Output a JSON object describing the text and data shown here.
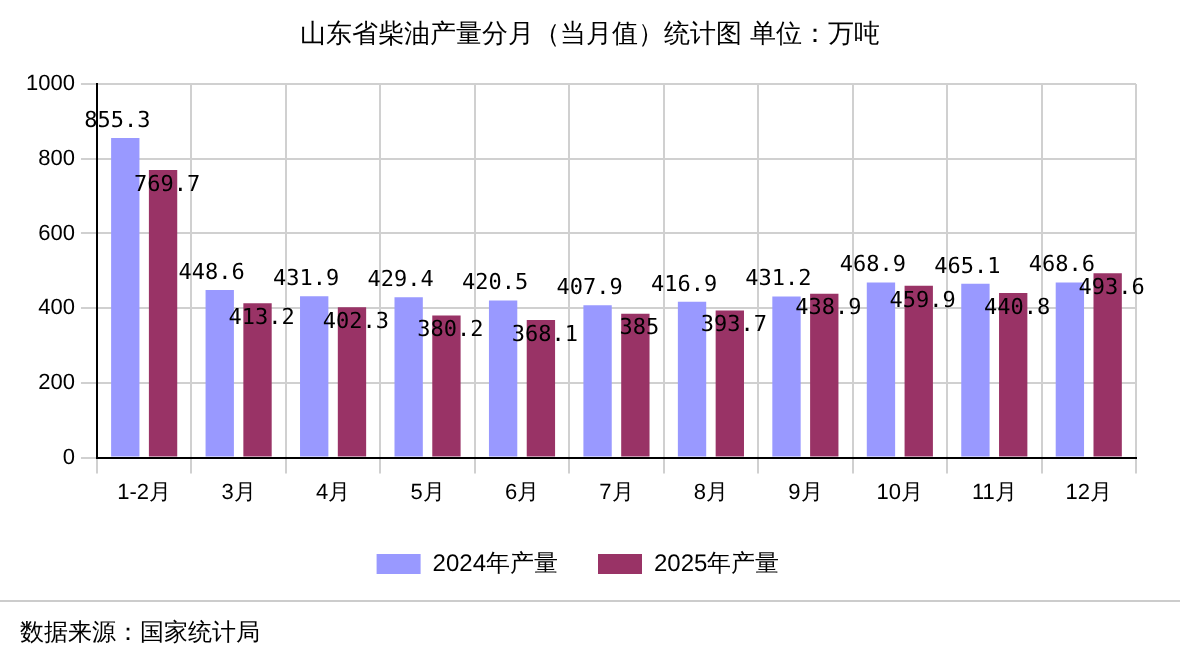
{
  "chart_data": {
    "type": "bar",
    "title": "山东省柴油产量分月（当月值）统计图  单位：万吨",
    "categories": [
      "1-2月",
      "3月",
      "4月",
      "5月",
      "6月",
      "7月",
      "8月",
      "9月",
      "10月",
      "11月",
      "12月"
    ],
    "series": [
      {
        "name": "2024年产量",
        "color": "#9999ff",
        "values": [
          855.3,
          448.6,
          431.9,
          429.4,
          420.5,
          407.9,
          416.9,
          431.2,
          468.9,
          465.1,
          468.6
        ]
      },
      {
        "name": "2025年产量",
        "color": "#993366",
        "values": [
          769.7,
          413.2,
          402.3,
          380.2,
          368.1,
          385,
          393.7,
          438.9,
          459.9,
          440.8,
          493.6
        ]
      }
    ],
    "ylim": [
      0,
      1000
    ],
    "yticks": [
      0,
      200,
      400,
      600,
      800,
      1000
    ],
    "grid": true,
    "legend": "bottom",
    "data_labels": true,
    "annotations": [
      "数据来源：国家统计局"
    ]
  }
}
